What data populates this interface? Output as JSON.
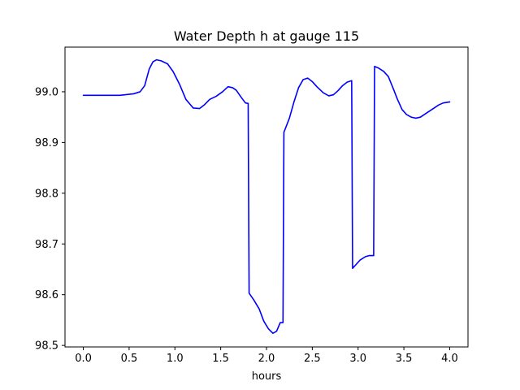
{
  "chart_data": {
    "type": "line",
    "title": "Water Depth h at gauge 115",
    "xlabel": "hours",
    "ylabel": "",
    "xlim": [
      -0.2,
      4.2
    ],
    "ylim": [
      98.497,
      99.088
    ],
    "xticks": [
      0.0,
      0.5,
      1.0,
      1.5,
      2.0,
      2.5,
      3.0,
      3.5,
      4.0
    ],
    "xtick_labels": [
      "0.0",
      "0.5",
      "1.0",
      "1.5",
      "2.0",
      "2.5",
      "3.0",
      "3.5",
      "4.0"
    ],
    "yticks": [
      98.5,
      98.6,
      98.7,
      98.8,
      98.9,
      99.0
    ],
    "ytick_labels": [
      "98.5",
      "98.6",
      "98.7",
      "98.8",
      "98.9",
      "99.0"
    ],
    "grid": false,
    "series": [
      {
        "color": "#0000ff",
        "x": [
          0.0,
          0.2,
          0.4,
          0.55,
          0.62,
          0.67,
          0.72,
          0.76,
          0.8,
          0.85,
          0.92,
          0.98,
          1.05,
          1.12,
          1.2,
          1.27,
          1.32,
          1.38,
          1.45,
          1.52,
          1.58,
          1.63,
          1.67,
          1.72,
          1.77,
          1.8,
          1.81,
          1.86,
          1.92,
          1.97,
          2.02,
          2.07,
          2.11,
          2.15,
          2.18,
          2.19,
          2.25,
          2.3,
          2.35,
          2.4,
          2.45,
          2.5,
          2.55,
          2.62,
          2.68,
          2.73,
          2.78,
          2.83,
          2.88,
          2.93,
          2.94,
          2.97,
          3.02,
          3.08,
          3.12,
          3.17,
          3.18,
          3.22,
          3.28,
          3.33,
          3.38,
          3.43,
          3.48,
          3.53,
          3.58,
          3.63,
          3.68,
          3.73,
          3.78,
          3.83,
          3.88,
          3.93,
          4.0
        ],
        "y": [
          98.993,
          98.993,
          98.993,
          98.996,
          99.0,
          99.012,
          99.045,
          99.059,
          99.063,
          99.061,
          99.055,
          99.04,
          99.015,
          98.985,
          98.968,
          98.967,
          98.974,
          98.985,
          98.991,
          99.0,
          99.01,
          99.008,
          99.003,
          98.99,
          98.978,
          98.977,
          98.603,
          98.59,
          98.572,
          98.548,
          98.533,
          98.524,
          98.528,
          98.545,
          98.545,
          98.92,
          98.948,
          98.98,
          99.008,
          99.024,
          99.027,
          99.02,
          99.01,
          98.998,
          98.992,
          98.994,
          99.002,
          99.012,
          99.019,
          99.022,
          98.652,
          98.658,
          98.668,
          98.675,
          98.677,
          98.677,
          99.05,
          99.047,
          99.04,
          99.03,
          99.008,
          98.985,
          98.965,
          98.955,
          98.95,
          98.948,
          98.95,
          98.956,
          98.962,
          98.968,
          98.974,
          98.978,
          98.98
        ]
      }
    ]
  }
}
